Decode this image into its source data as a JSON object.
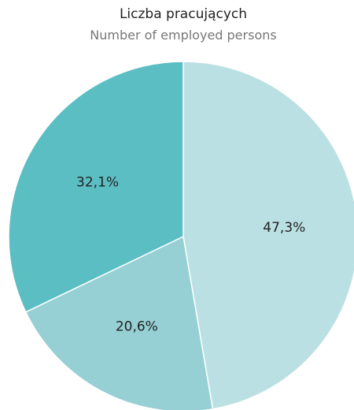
{
  "chart_data": {
    "type": "pie",
    "title": "Liczba pracujących",
    "subtitle": "Number of employed persons",
    "slices": [
      {
        "label": "47,3%",
        "value": 47.3,
        "color": "#bbe0e3"
      },
      {
        "label": "20,6%",
        "value": 20.6,
        "color": "#96d0d4"
      },
      {
        "label": "32,1%",
        "value": 32.1,
        "color": "#5bbec3"
      }
    ]
  }
}
